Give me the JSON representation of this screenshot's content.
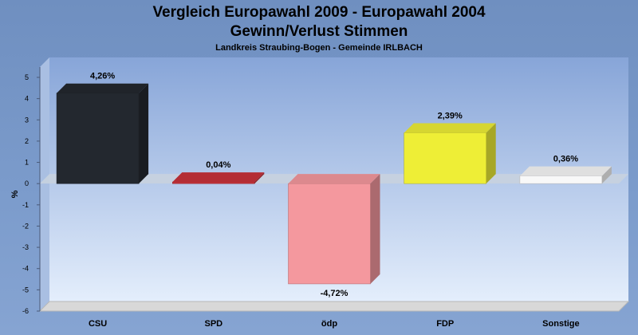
{
  "chart_data": {
    "type": "bar",
    "title_lines": [
      "Vergleich Europawahl 2009 - Europawahl 2004",
      "Gewinn/Verlust Stimmen"
    ],
    "subtitle": "Landkreis Straubing-Bogen - Gemeinde IRLBACH",
    "ylabel": "%",
    "xlabel": "",
    "ylim": [
      -6,
      5
    ],
    "yticks": [
      5,
      4,
      3,
      2,
      1,
      0,
      -1,
      -2,
      -3,
      -4,
      -5,
      -6
    ],
    "ytick_labels": [
      "5",
      "4",
      "3",
      "2",
      "1",
      "0",
      "-1",
      "-2",
      "-3",
      "-4",
      "-5",
      "-6"
    ],
    "categories": [
      "CSU",
      "SPD",
      "ödp",
      "FDP",
      "Sonstige"
    ],
    "values": [
      4.26,
      0.04,
      -4.72,
      2.39,
      0.36
    ],
    "value_labels": [
      "4,26%",
      "0,04%",
      "-4,72%",
      "2,39%",
      "0,36%"
    ],
    "colors": [
      "#23282f",
      "#c8323a",
      "#f4989e",
      "#eeee36",
      "#f8f8f8"
    ],
    "grid": false,
    "legend": "none"
  }
}
